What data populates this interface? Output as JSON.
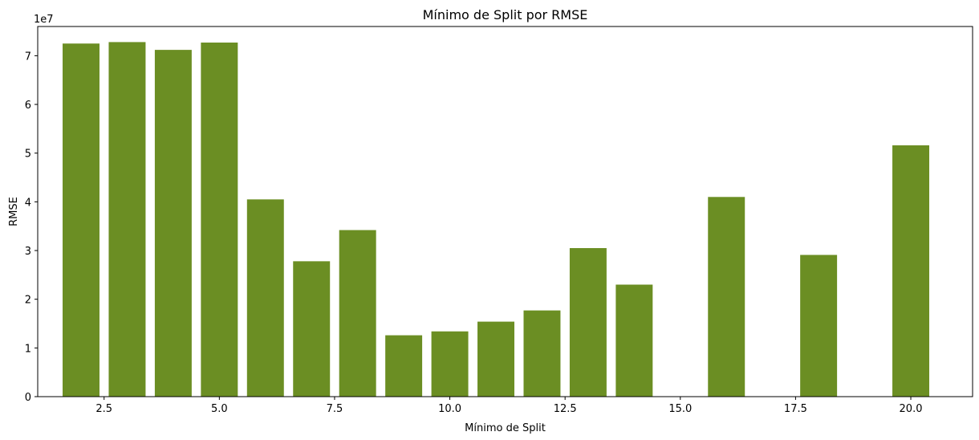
{
  "chart_data": {
    "type": "bar",
    "title": "Mínimo de Split por RMSE",
    "xlabel": "Mínimo de Split",
    "ylabel": "RMSE",
    "y_offset_label": "1e7",
    "color": "#6b8e23",
    "bar_width": 0.8,
    "x": [
      2,
      3,
      4,
      5,
      6,
      7,
      8,
      9,
      10,
      11,
      12,
      13,
      14,
      16,
      18,
      20
    ],
    "values": [
      72500000,
      72800000,
      71200000,
      72700000,
      40500000,
      27800000,
      34200000,
      12600000,
      13400000,
      15400000,
      17700000,
      30500000,
      23000000,
      41000000,
      29100000,
      51600000
    ],
    "xlim": [
      1.06,
      21.34
    ],
    "ylim": [
      0,
      76000000
    ],
    "x_ticks": [
      2.5,
      5.0,
      7.5,
      10.0,
      12.5,
      15.0,
      17.5,
      20.0
    ],
    "x_tick_labels": [
      "2.5",
      "5.0",
      "7.5",
      "10.0",
      "12.5",
      "15.0",
      "17.5",
      "20.0"
    ],
    "y_ticks": [
      0,
      10000000,
      20000000,
      30000000,
      40000000,
      50000000,
      60000000,
      70000000
    ],
    "y_tick_labels": [
      "0",
      "1",
      "2",
      "3",
      "4",
      "5",
      "6",
      "7"
    ],
    "grid": false,
    "legend": false
  }
}
